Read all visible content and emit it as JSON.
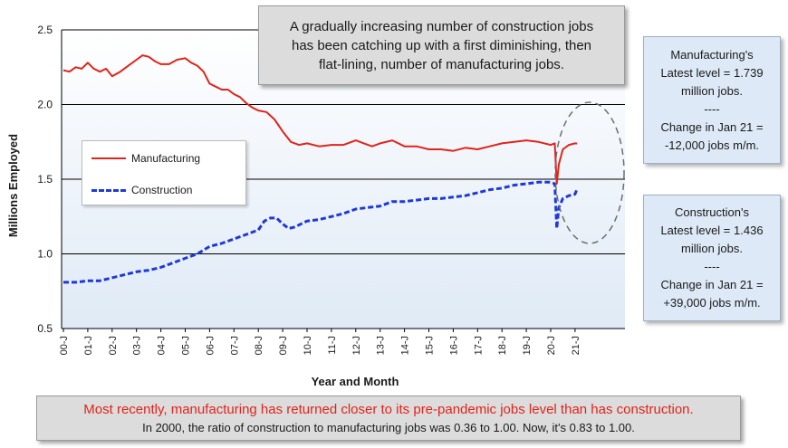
{
  "chart_data": {
    "type": "line",
    "ylabel": "Millions Employed",
    "xlabel": "Year and Month",
    "ylim": [
      0.5,
      2.5
    ],
    "yticks": [
      "0.5",
      "1.0",
      "1.5",
      "2.0",
      "2.5"
    ],
    "xticks": [
      "00-J",
      "01-J",
      "02-J",
      "03-J",
      "04-J",
      "05-J",
      "06-J",
      "07-J",
      "08-J",
      "09-J",
      "10-J",
      "11-J",
      "12-J",
      "13-J",
      "14-J",
      "15-J",
      "16-J",
      "17-J",
      "18-J",
      "19-J",
      "20-J",
      "21-J"
    ],
    "grid": "horizontal",
    "legend_placement": "left-middle",
    "series": [
      {
        "name": "Manufacturing",
        "color": "#e0241b",
        "style": "solid",
        "points": [
          [
            "00-J",
            2.23
          ],
          [
            "00-J+3",
            2.22
          ],
          [
            "00-J+6",
            2.25
          ],
          [
            "00-J+9",
            2.24
          ],
          [
            "01-J",
            2.28
          ],
          [
            "01-J+3",
            2.24
          ],
          [
            "01-J+6",
            2.22
          ],
          [
            "01-J+9",
            2.24
          ],
          [
            "02-J",
            2.19
          ],
          [
            "02-J+4",
            2.22
          ],
          [
            "02-J+8",
            2.26
          ],
          [
            "03-J",
            2.3
          ],
          [
            "03-J+3",
            2.33
          ],
          [
            "03-J+6",
            2.32
          ],
          [
            "03-J+9",
            2.29
          ],
          [
            "04-J",
            2.27
          ],
          [
            "04-J+4",
            2.27
          ],
          [
            "04-J+8",
            2.3
          ],
          [
            "05-J",
            2.31
          ],
          [
            "05-J+3",
            2.28
          ],
          [
            "05-J+6",
            2.26
          ],
          [
            "05-J+9",
            2.22
          ],
          [
            "06-J",
            2.14
          ],
          [
            "06-J+3",
            2.12
          ],
          [
            "06-J+6",
            2.1
          ],
          [
            "06-J+9",
            2.1
          ],
          [
            "07-J",
            2.07
          ],
          [
            "07-J+3",
            2.05
          ],
          [
            "07-J+6",
            2.01
          ],
          [
            "07-J+9",
            1.98
          ],
          [
            "08-J",
            1.96
          ],
          [
            "08-J+4",
            1.95
          ],
          [
            "08-J+8",
            1.9
          ],
          [
            "09-J",
            1.82
          ],
          [
            "09-J+4",
            1.75
          ],
          [
            "09-J+8",
            1.73
          ],
          [
            "10-J",
            1.74
          ],
          [
            "10-J+6",
            1.72
          ],
          [
            "11-J",
            1.73
          ],
          [
            "11-J+6",
            1.73
          ],
          [
            "12-J",
            1.76
          ],
          [
            "12-J+4",
            1.74
          ],
          [
            "12-J+8",
            1.72
          ],
          [
            "13-J",
            1.74
          ],
          [
            "13-J+6",
            1.76
          ],
          [
            "14-J",
            1.72
          ],
          [
            "14-J+6",
            1.72
          ],
          [
            "15-J",
            1.7
          ],
          [
            "15-J+6",
            1.7
          ],
          [
            "16-J",
            1.69
          ],
          [
            "16-J+6",
            1.71
          ],
          [
            "17-J",
            1.7
          ],
          [
            "17-J+6",
            1.72
          ],
          [
            "18-J",
            1.74
          ],
          [
            "18-J+6",
            1.75
          ],
          [
            "19-J",
            1.76
          ],
          [
            "19-J+6",
            1.75
          ],
          [
            "20-J",
            1.73
          ],
          [
            "20-J+2",
            1.74
          ],
          [
            "20-J+3",
            1.47
          ],
          [
            "20-J+4",
            1.6
          ],
          [
            "20-J+6",
            1.7
          ],
          [
            "20-J+9",
            1.73
          ],
          [
            "21-J",
            1.74
          ],
          [
            "21-J+1",
            1.739
          ]
        ]
      },
      {
        "name": "Construction",
        "color": "#1f39d6",
        "style": "dashed",
        "points": [
          [
            "00-J",
            0.81
          ],
          [
            "00-J+6",
            0.81
          ],
          [
            "01-J",
            0.82
          ],
          [
            "01-J+6",
            0.82
          ],
          [
            "02-J",
            0.84
          ],
          [
            "02-J+6",
            0.86
          ],
          [
            "03-J",
            0.88
          ],
          [
            "03-J+6",
            0.89
          ],
          [
            "04-J",
            0.91
          ],
          [
            "04-J+6",
            0.94
          ],
          [
            "05-J",
            0.97
          ],
          [
            "05-J+6",
            1.0
          ],
          [
            "06-J",
            1.05
          ],
          [
            "06-J+6",
            1.07
          ],
          [
            "07-J",
            1.1
          ],
          [
            "07-J+6",
            1.13
          ],
          [
            "08-J",
            1.16
          ],
          [
            "08-J+3",
            1.22
          ],
          [
            "08-J+6",
            1.24
          ],
          [
            "08-J+9",
            1.24
          ],
          [
            "09-J",
            1.2
          ],
          [
            "09-J+3",
            1.17
          ],
          [
            "09-J+6",
            1.18
          ],
          [
            "10-J",
            1.22
          ],
          [
            "10-J+6",
            1.23
          ],
          [
            "11-J",
            1.25
          ],
          [
            "11-J+6",
            1.27
          ],
          [
            "12-J",
            1.3
          ],
          [
            "12-J+6",
            1.31
          ],
          [
            "13-J",
            1.32
          ],
          [
            "13-J+6",
            1.35
          ],
          [
            "14-J",
            1.35
          ],
          [
            "14-J+6",
            1.36
          ],
          [
            "15-J",
            1.37
          ],
          [
            "15-J+6",
            1.37
          ],
          [
            "16-J",
            1.38
          ],
          [
            "16-J+6",
            1.39
          ],
          [
            "17-J",
            1.41
          ],
          [
            "17-J+6",
            1.43
          ],
          [
            "18-J",
            1.44
          ],
          [
            "18-J+6",
            1.46
          ],
          [
            "19-J",
            1.47
          ],
          [
            "19-J+6",
            1.48
          ],
          [
            "20-J",
            1.48
          ],
          [
            "20-J+2",
            1.47
          ],
          [
            "20-J+3",
            1.17
          ],
          [
            "20-J+4",
            1.31
          ],
          [
            "20-J+6",
            1.37
          ],
          [
            "20-J+9",
            1.39
          ],
          [
            "21-J",
            1.4
          ],
          [
            "21-J+1",
            1.436
          ]
        ]
      }
    ]
  },
  "notes": {
    "top": [
      "A gradually increasing number of construction jobs",
      "has been catching up with a first diminishing, then",
      "flat-lining, number of manufacturing jobs."
    ],
    "manufacturing_box": [
      "Manufacturing's",
      "Latest level = 1.739",
      "million jobs.",
      "----",
      "Change in Jan 21 =",
      "-12,000 jobs m/m."
    ],
    "construction_box": [
      "Construction's",
      "Latest level = 1.436",
      "million jobs.",
      "----",
      "Change in Jan 21 =",
      "+39,000 jobs m/m."
    ],
    "bottom_line1": "Most recently, manufacturing has returned closer to its pre-pandemic jobs level than has construction.",
    "bottom_line2": "In 2000, the ratio of construction to manufacturing jobs was 0.36 to 1.00. Now, it's 0.83 to 1.00."
  },
  "colors": {
    "manufacturing": "#e0241b",
    "construction": "#1f39d6",
    "plot_background_top": "#ffffff",
    "plot_background_bottom": "#dfeaf6"
  }
}
